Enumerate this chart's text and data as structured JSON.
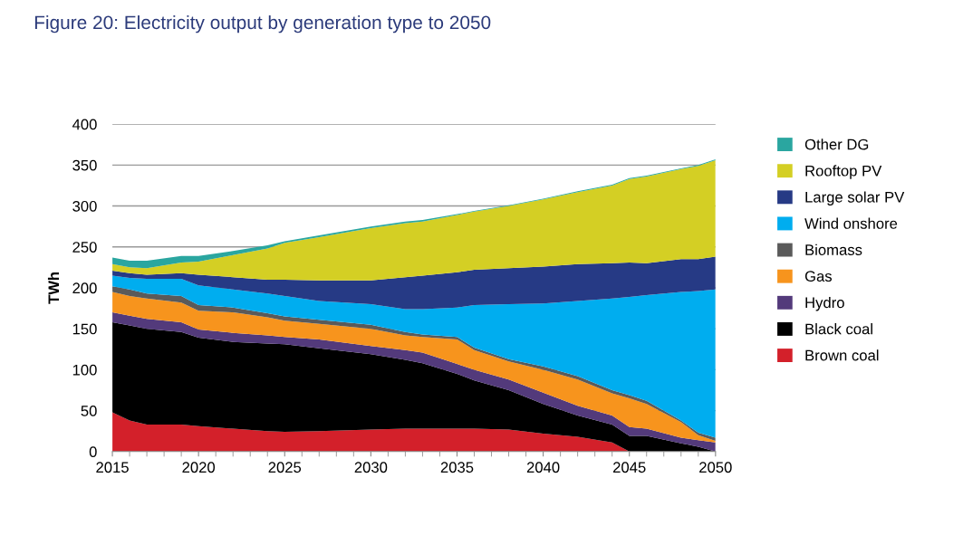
{
  "chart_data": {
    "type": "area",
    "stacked": true,
    "title": "Figure 20: Electricity output by generation type to 2050",
    "ylabel": "TWh",
    "x": [
      2015,
      2016,
      2017,
      2019,
      2020,
      2022,
      2024,
      2025,
      2027,
      2030,
      2032,
      2033,
      2035,
      2036,
      2038,
      2040,
      2042,
      2044,
      2045,
      2046,
      2048,
      2049,
      2050
    ],
    "xlim": [
      2015,
      2050
    ],
    "xticks": [
      2015,
      2020,
      2025,
      2030,
      2035,
      2040,
      2045,
      2050
    ],
    "ylim": [
      0,
      400
    ],
    "yticks": [
      0,
      50,
      100,
      150,
      200,
      250,
      300,
      350,
      400
    ],
    "grid": "y",
    "legend": "right",
    "series": [
      {
        "name": "Brown coal",
        "color": "#d3202a",
        "values": [
          48,
          38,
          33,
          33,
          31,
          28,
          25,
          24,
          25,
          27,
          28,
          28,
          28,
          28,
          27,
          22,
          18,
          11,
          0,
          0,
          0,
          0,
          0
        ]
      },
      {
        "name": "Black coal",
        "color": "#000000",
        "values": [
          110,
          116,
          117,
          113,
          108,
          106,
          107,
          107,
          101,
          92,
          84,
          80,
          67,
          59,
          48,
          36,
          26,
          22,
          19,
          19,
          10,
          6,
          0
        ]
      },
      {
        "name": "Hydro",
        "color": "#533a7b",
        "values": [
          12,
          12,
          12,
          12,
          10,
          11,
          10,
          9,
          11,
          10,
          12,
          13,
          12,
          13,
          13,
          14,
          12,
          11,
          11,
          9,
          7,
          8,
          11
        ]
      },
      {
        "name": "Gas",
        "color": "#f7941d",
        "values": [
          25,
          24,
          25,
          24,
          23,
          25,
          22,
          20,
          19,
          21,
          18,
          19,
          30,
          24,
          22,
          28,
          32,
          27,
          35,
          30,
          19,
          6,
          2
        ]
      },
      {
        "name": "Biomass",
        "color": "#5a5a5a",
        "values": [
          7,
          8,
          6,
          8,
          7,
          6,
          5,
          5,
          5,
          5,
          4,
          3,
          3,
          3,
          3,
          4,
          4,
          4,
          4,
          4,
          2,
          3,
          4
        ]
      },
      {
        "name": "Wind onshore",
        "color": "#00adef",
        "values": [
          13,
          14,
          18,
          21,
          24,
          22,
          24,
          25,
          23,
          25,
          28,
          31,
          36,
          52,
          67,
          77,
          92,
          112,
          120,
          129,
          157,
          173,
          181
        ]
      },
      {
        "name": "Large solar PV",
        "color": "#263a85",
        "values": [
          6,
          6,
          5,
          7,
          13,
          15,
          17,
          20,
          25,
          29,
          39,
          41,
          43,
          43,
          44,
          45,
          45,
          43,
          42,
          39,
          40,
          39,
          40
        ]
      },
      {
        "name": "Rooftop PV",
        "color": "#d4cf24",
        "values": [
          8,
          7,
          8,
          13,
          16,
          27,
          38,
          45,
          53,
          64,
          66,
          66,
          70,
          71,
          76,
          82,
          88,
          95,
          102,
          106,
          110,
          114,
          118
        ]
      },
      {
        "name": "Other DG",
        "color": "#2aa6a0",
        "values": [
          8,
          8,
          9,
          8,
          7,
          5,
          4,
          2,
          2,
          2,
          2,
          2,
          1,
          1,
          1,
          1,
          1,
          1,
          1,
          1,
          1,
          1,
          1
        ]
      }
    ]
  }
}
